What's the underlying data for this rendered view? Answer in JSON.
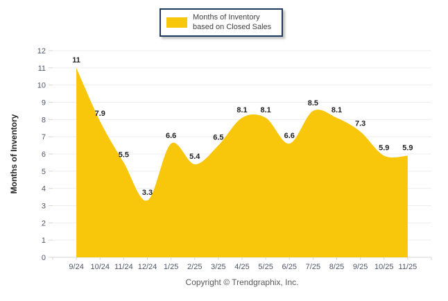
{
  "legend": {
    "label": "Months of Inventory based on Closed Sales",
    "swatch_color": "#F8C60A"
  },
  "ylabel": "Months of Inventory",
  "footer": "Copyright © Trendgraphix, Inc.",
  "colors": {
    "area": "#F8C60A",
    "grid": "#ededed",
    "axis": "#d6d6d6",
    "tick_label": "#4d5466",
    "data_label": "#1f1f1f",
    "legend_border": "#1b3a5f"
  },
  "chart_data": {
    "type": "area",
    "categories": [
      "9/24",
      "10/24",
      "11/24",
      "12/24",
      "1/25",
      "2/25",
      "3/25",
      "4/25",
      "5/25",
      "6/25",
      "7/25",
      "8/25",
      "9/25",
      "10/25",
      "11/25"
    ],
    "values": [
      11,
      7.9,
      5.5,
      3.3,
      6.6,
      5.4,
      6.5,
      8.1,
      8.1,
      6.6,
      8.5,
      8.1,
      7.3,
      5.9,
      5.9
    ],
    "title": "",
    "xlabel": "",
    "ylabel": "Months of Inventory",
    "ylim": [
      0,
      12
    ],
    "ytick_step": 1,
    "grid": true,
    "legend": [
      "Months of Inventory based on Closed Sales"
    ],
    "legend_position": "top",
    "data_labels": true,
    "curve": "smooth"
  }
}
